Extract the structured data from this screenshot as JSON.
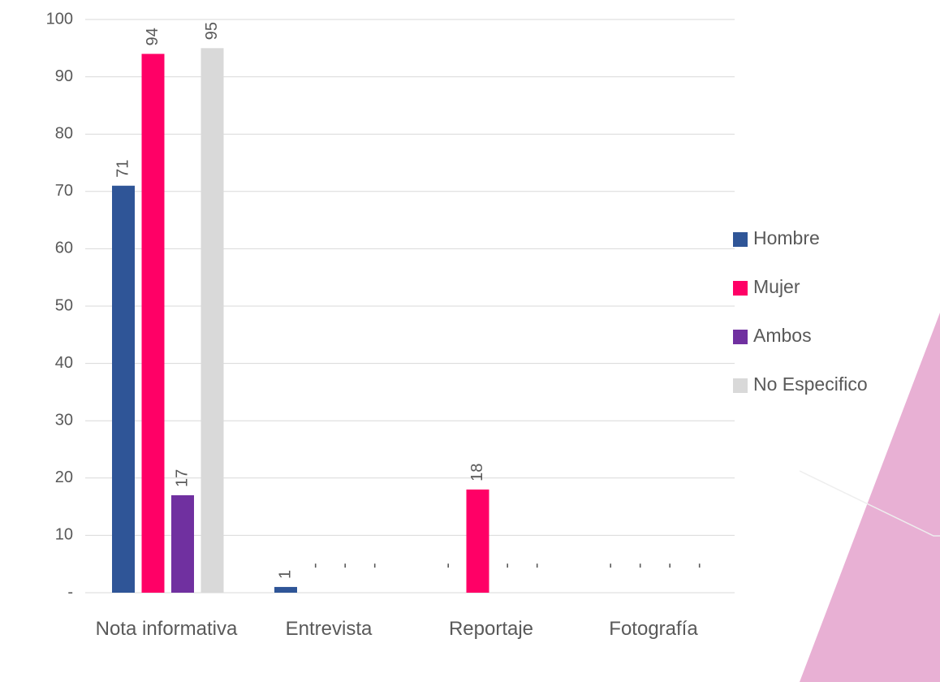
{
  "chart_data": {
    "type": "bar",
    "categories": [
      "Nota informativa",
      "Entrevista",
      "Reportaje",
      "Fotografía"
    ],
    "series": [
      {
        "name": "Hombre",
        "color": "#2f5597",
        "values": [
          71,
          1,
          0,
          0
        ],
        "value_labels": [
          "71",
          "1",
          "-",
          "-"
        ]
      },
      {
        "name": "Mujer",
        "color": "#ff0066",
        "values": [
          94,
          0,
          18,
          0
        ],
        "value_labels": [
          "94",
          "-",
          "18",
          "-"
        ]
      },
      {
        "name": "Ambos",
        "color": "#7030a0",
        "values": [
          17,
          0,
          0,
          0
        ],
        "value_labels": [
          "17",
          "-",
          "-",
          "-"
        ]
      },
      {
        "name": "No Especifico",
        "color": "#d9d9d9",
        "values": [
          95,
          0,
          0,
          0
        ],
        "value_labels": [
          "95",
          "-",
          "-",
          "-"
        ]
      }
    ],
    "ylim": [
      0,
      100
    ],
    "yticks": [
      {
        "value": 0,
        "label": "-"
      },
      10,
      20,
      30,
      40,
      50,
      60,
      70,
      80,
      90,
      100
    ],
    "grid": true,
    "legend": "right"
  }
}
